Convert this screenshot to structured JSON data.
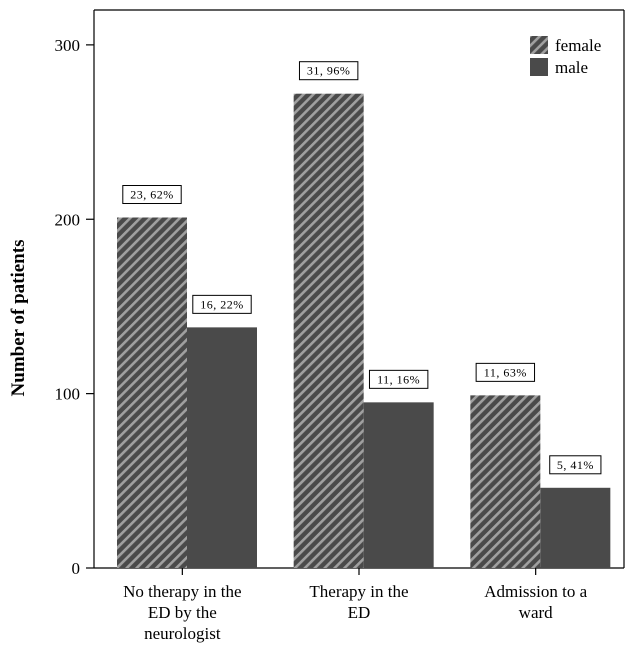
{
  "chart_data": {
    "type": "bar",
    "categories": [
      [
        "No therapy in the",
        "ED by the",
        "neurologist"
      ],
      [
        "Therapy in the",
        "ED"
      ],
      [
        "Admission to a",
        "ward"
      ]
    ],
    "series": [
      {
        "name": "female",
        "values": [
          201,
          272,
          99
        ],
        "labels": [
          "23, 62%",
          "31, 96%",
          "11, 63%"
        ]
      },
      {
        "name": "male",
        "values": [
          138,
          95,
          46
        ],
        "labels": [
          "16, 22%",
          "11, 16%",
          "5, 41%"
        ]
      }
    ],
    "ylabel": "Number of patients",
    "ylim": [
      0,
      320
    ],
    "yticks": [
      0,
      100,
      200,
      300
    ],
    "legend_position": "top-right",
    "grid": false,
    "colors": {
      "female": "#4a4a4a",
      "female_stripe": "#9a9a9a",
      "male": "#4a4a4a",
      "label_box": "#ffffff"
    }
  }
}
